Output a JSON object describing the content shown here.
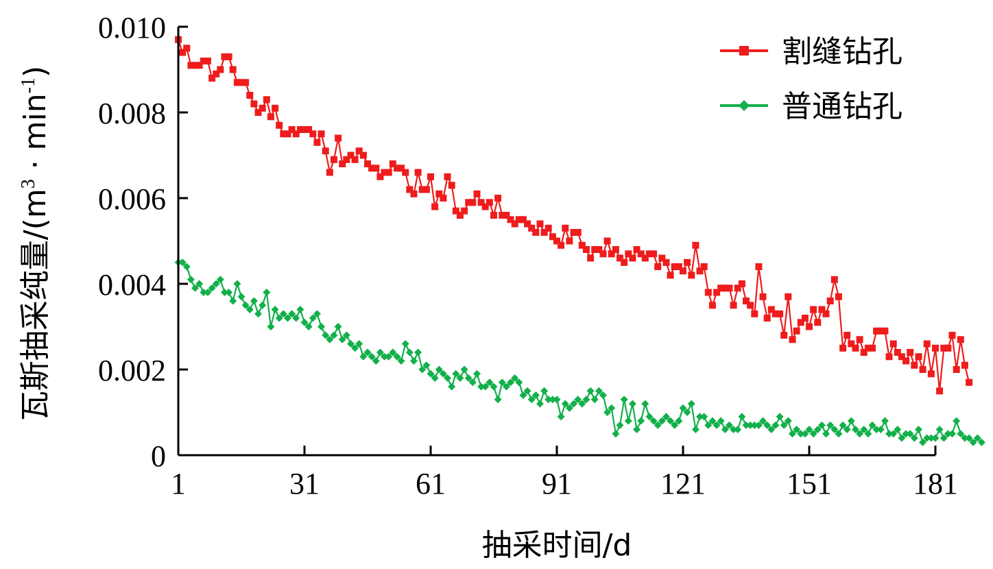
{
  "chart_data": {
    "type": "line",
    "xlabel": "抽采时间/d",
    "ylabel_prefix": "瓦斯抽采纯量/(m",
    "ylabel_sup": "3",
    "ylabel_mid": " · min",
    "ylabel_sup2": "-1",
    "ylabel_suffix": ")",
    "xlim": [
      1,
      181
    ],
    "ylim": [
      0,
      0.01
    ],
    "x_ticks": [
      1,
      31,
      61,
      91,
      121,
      151,
      181
    ],
    "y_ticks": [
      0,
      0.002,
      0.004,
      0.006,
      0.008,
      0.01
    ],
    "y_tick_labels": [
      "0",
      "0.002",
      "0.004",
      "0.006",
      "0.008",
      "0.010"
    ],
    "legend_position": "top-right",
    "colors": {
      "red": "#ee1c1c",
      "green": "#12b04a"
    },
    "series": [
      {
        "name": "割缝钻孔",
        "color": "#ee1c1c",
        "marker": "square",
        "x_start": 1,
        "x_step": 1,
        "values": [
          0.0097,
          0.0094,
          0.0095,
          0.0091,
          0.0091,
          0.0091,
          0.0092,
          0.0092,
          0.0088,
          0.0089,
          0.009,
          0.0093,
          0.0093,
          0.009,
          0.0087,
          0.0087,
          0.0087,
          0.0084,
          0.0082,
          0.008,
          0.0081,
          0.0083,
          0.0079,
          0.0081,
          0.0077,
          0.0075,
          0.0075,
          0.0076,
          0.0075,
          0.0076,
          0.0076,
          0.0076,
          0.0075,
          0.0073,
          0.0075,
          0.0071,
          0.0066,
          0.0069,
          0.0074,
          0.0068,
          0.0069,
          0.007,
          0.0069,
          0.0071,
          0.007,
          0.0068,
          0.0067,
          0.0067,
          0.0065,
          0.0066,
          0.0066,
          0.0068,
          0.0067,
          0.0067,
          0.0066,
          0.0062,
          0.0061,
          0.0066,
          0.0062,
          0.0062,
          0.0065,
          0.0058,
          0.0061,
          0.006,
          0.0065,
          0.0063,
          0.0057,
          0.0056,
          0.0057,
          0.0059,
          0.0059,
          0.0061,
          0.0059,
          0.0058,
          0.0059,
          0.0056,
          0.006,
          0.0056,
          0.0056,
          0.0055,
          0.0054,
          0.0055,
          0.0055,
          0.0054,
          0.0053,
          0.0052,
          0.0054,
          0.0052,
          0.0053,
          0.0051,
          0.005,
          0.0049,
          0.0053,
          0.005,
          0.0052,
          0.0052,
          0.0049,
          0.0048,
          0.0046,
          0.0048,
          0.0048,
          0.0047,
          0.005,
          0.0047,
          0.0048,
          0.0046,
          0.0045,
          0.0047,
          0.0046,
          0.0048,
          0.0047,
          0.0046,
          0.0047,
          0.0047,
          0.0044,
          0.0046,
          0.0045,
          0.0042,
          0.0044,
          0.0044,
          0.0043,
          0.0045,
          0.0042,
          0.0049,
          0.0043,
          0.0044,
          0.0038,
          0.0035,
          0.0038,
          0.0039,
          0.0039,
          0.0039,
          0.0035,
          0.0039,
          0.004,
          0.0036,
          0.0035,
          0.0033,
          0.0044,
          0.0037,
          0.0032,
          0.0034,
          0.0033,
          0.0033,
          0.0028,
          0.0037,
          0.0027,
          0.0029,
          0.0031,
          0.0032,
          0.003,
          0.0034,
          0.0031,
          0.0034,
          0.0033,
          0.0036,
          0.0041,
          0.0037,
          0.0025,
          0.0028,
          0.0026,
          0.0025,
          0.0027,
          0.0024,
          0.0025,
          0.0025,
          0.0029,
          0.0029,
          0.0029,
          0.0023,
          0.0026,
          0.0024,
          0.0023,
          0.0022,
          0.0024,
          0.0021,
          0.0023,
          0.002,
          0.0026,
          0.0019,
          0.0025,
          0.0015,
          0.0025,
          0.0025,
          0.0028,
          0.002,
          0.0027,
          0.0021,
          0.0017
        ]
      },
      {
        "name": "普通钻孔",
        "color": "#12b04a",
        "marker": "diamond",
        "x_start": 1,
        "x_step": 1,
        "values": [
          0.0045,
          0.0045,
          0.0044,
          0.0041,
          0.0039,
          0.004,
          0.0038,
          0.0038,
          0.0039,
          0.004,
          0.0041,
          0.0038,
          0.0038,
          0.0036,
          0.004,
          0.0037,
          0.0035,
          0.0034,
          0.0036,
          0.0033,
          0.0035,
          0.0038,
          0.003,
          0.0034,
          0.0032,
          0.0033,
          0.0032,
          0.0033,
          0.0032,
          0.0034,
          0.0031,
          0.003,
          0.0032,
          0.0033,
          0.003,
          0.0028,
          0.0027,
          0.0028,
          0.003,
          0.0027,
          0.0028,
          0.0026,
          0.0025,
          0.0026,
          0.0023,
          0.0024,
          0.0023,
          0.0022,
          0.0024,
          0.0023,
          0.0023,
          0.0024,
          0.0023,
          0.0022,
          0.0026,
          0.0024,
          0.0022,
          0.0024,
          0.002,
          0.0021,
          0.0019,
          0.0018,
          0.002,
          0.0019,
          0.0018,
          0.0016,
          0.0019,
          0.0018,
          0.002,
          0.0018,
          0.0017,
          0.0019,
          0.0016,
          0.0016,
          0.0017,
          0.0016,
          0.0013,
          0.0017,
          0.0016,
          0.0017,
          0.0018,
          0.0017,
          0.0014,
          0.0015,
          0.0013,
          0.0014,
          0.0012,
          0.0015,
          0.0013,
          0.0013,
          0.0013,
          0.0009,
          0.0012,
          0.0011,
          0.0012,
          0.0013,
          0.0012,
          0.0013,
          0.0015,
          0.0013,
          0.0015,
          0.0014,
          0.001,
          0.0011,
          0.0005,
          0.0007,
          0.0013,
          0.0008,
          0.0012,
          0.0006,
          0.0008,
          0.0012,
          0.0009,
          0.0008,
          0.0007,
          0.0008,
          0.0009,
          0.0008,
          0.0007,
          0.0008,
          0.0011,
          0.001,
          0.0012,
          0.0006,
          0.0009,
          0.0009,
          0.0007,
          0.0008,
          0.0007,
          0.0008,
          0.0006,
          0.0007,
          0.0006,
          0.0006,
          0.0009,
          0.0007,
          0.0007,
          0.0007,
          0.0007,
          0.0008,
          0.0007,
          0.0006,
          0.0007,
          0.0009,
          0.0007,
          0.0008,
          0.0005,
          0.0006,
          0.0005,
          0.0005,
          0.0006,
          0.0005,
          0.0006,
          0.0007,
          0.0005,
          0.0007,
          0.0006,
          0.0005,
          0.0007,
          0.0006,
          0.0008,
          0.0006,
          0.0005,
          0.0006,
          0.0005,
          0.0007,
          0.0006,
          0.0006,
          0.0008,
          0.0005,
          0.0005,
          0.0006,
          0.0004,
          0.0005,
          0.0005,
          0.0004,
          0.0006,
          0.0003,
          0.0004,
          0.0004,
          0.0004,
          0.0006,
          0.0004,
          0.0005,
          0.0005,
          0.0008,
          0.0005,
          0.0004,
          0.0004,
          0.0003,
          0.0004,
          0.0003
        ]
      }
    ]
  }
}
